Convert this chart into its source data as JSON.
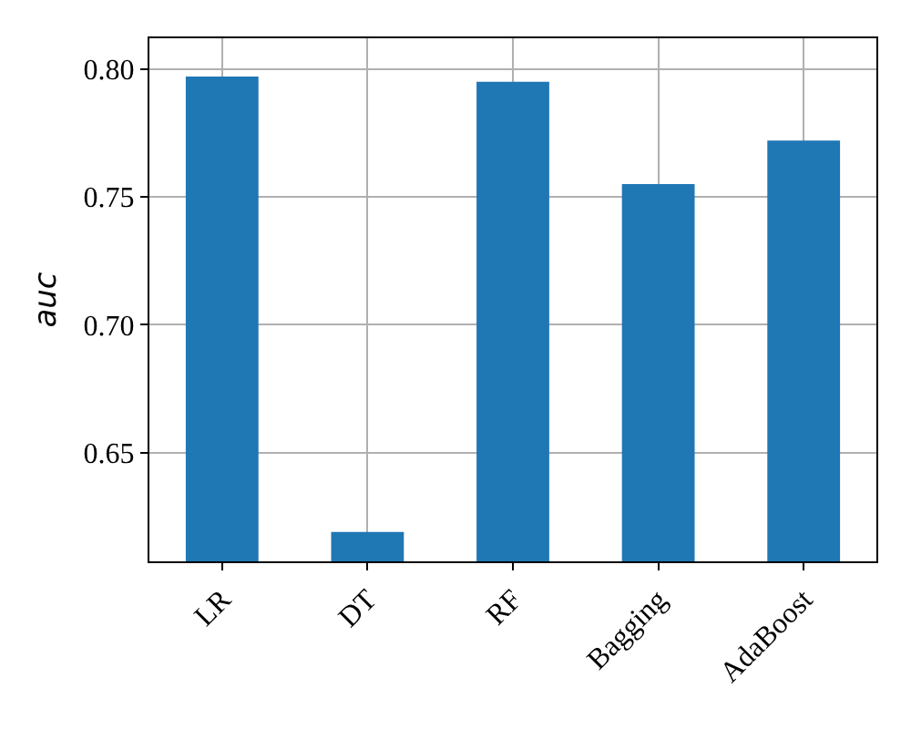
{
  "chart_data": {
    "type": "bar",
    "ylabel": "auc",
    "categories": [
      "LR",
      "DT",
      "RF",
      "Bagging",
      "AdaBoost"
    ],
    "values": [
      0.797,
      0.619,
      0.795,
      0.755,
      0.772
    ],
    "color": "#1f77b4",
    "ylim": [
      0.6075,
      0.812
    ],
    "yticks": [
      0.65,
      {
        "value": 0.7,
        "label": "0.70"
      },
      0.75,
      {
        "value": 0.8,
        "label": "0.80"
      }
    ],
    "grid": true
  }
}
